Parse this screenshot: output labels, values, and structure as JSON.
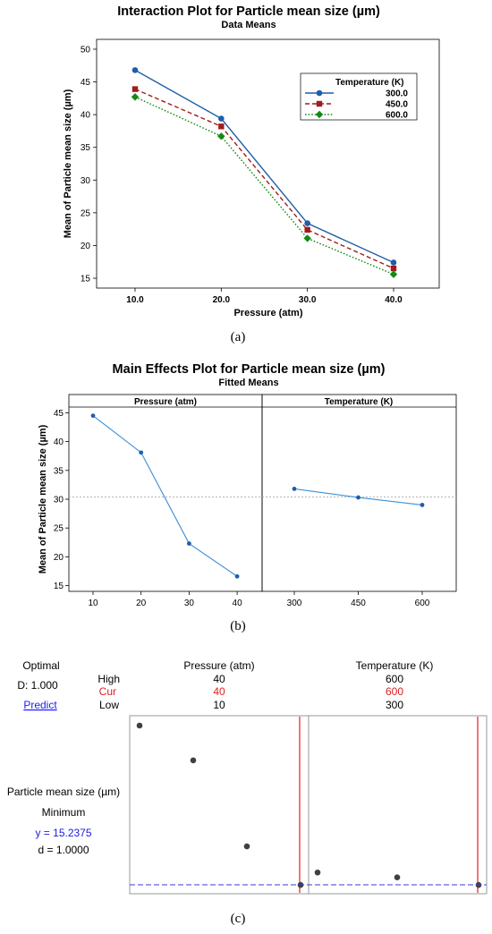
{
  "chart_data": [
    {
      "type": "line",
      "title": "Interaction Plot for Particle mean size (µm)",
      "subtitle": "Data Means",
      "xlabel": "Pressure (atm)",
      "ylabel": "Mean of Particle mean size (µm)",
      "categories": [
        "10.0",
        "20.0",
        "30.0",
        "40.0"
      ],
      "y_ticks": [
        "15",
        "20",
        "25",
        "30",
        "35",
        "40",
        "45",
        "50"
      ],
      "ylim": [
        13.5,
        51.5
      ],
      "legend_title": "Temperature (K)",
      "legend_position": "top-right",
      "series": [
        {
          "name": "300.0",
          "values": [
            46.8,
            39.4,
            23.4,
            17.4
          ],
          "color": "#1f5fa8",
          "marker": "circle",
          "dash": "solid"
        },
        {
          "name": "450.0",
          "values": [
            43.9,
            38.2,
            22.4,
            16.5
          ],
          "color": "#a11c1c",
          "marker": "square",
          "dash": "dashed"
        },
        {
          "name": "600.0",
          "values": [
            42.7,
            36.7,
            21.1,
            15.6
          ],
          "color": "#138a13",
          "marker": "diamond",
          "dash": "dotted"
        }
      ],
      "caption": "(a)"
    },
    {
      "type": "line",
      "title": "Main Effects Plot for Particle mean size (µm)",
      "subtitle": "Fitted Means",
      "ylabel": "Mean of Particle mean size (µm)",
      "y_ticks": [
        "15",
        "20",
        "25",
        "30",
        "35",
        "40",
        "45"
      ],
      "ylim": [
        14,
        46
      ],
      "reference_line": 30.4,
      "color": "#3d8fd6",
      "panels": [
        {
          "label": "Pressure (atm)",
          "x": [
            "10",
            "20",
            "30",
            "40"
          ],
          "values": [
            44.5,
            38.1,
            22.3,
            16.6
          ]
        },
        {
          "label": "Temperature (K)",
          "x": [
            "300",
            "450",
            "600"
          ],
          "values": [
            31.8,
            30.3,
            29.0
          ]
        }
      ],
      "caption": "(b)"
    },
    {
      "type": "scatter",
      "title": "",
      "optimal_label": "Optimal",
      "d_label": "D: 1.000",
      "predict_label": "Predict",
      "row_labels": {
        "high": "High",
        "cur": "Cur",
        "low": "Low"
      },
      "factors": [
        {
          "name": "Pressure (atm)",
          "high": "40",
          "cur": "40",
          "low": "10",
          "values": [
            44.5,
            38.1,
            22.3,
            15.2
          ],
          "optimum_fraction": 1.0
        },
        {
          "name": "Temperature (K)",
          "high": "600",
          "cur": "600",
          "low": "300",
          "values": [
            17.5,
            16.6,
            15.2
          ],
          "optimum_fraction": 1.0
        }
      ],
      "response": {
        "name": "Particle mean size (µm)",
        "goal": "Minimum",
        "y": "y = 15.2375",
        "d": "d = 1.0000",
        "target_value": 15.2375
      },
      "colors": {
        "cur": "#e02020",
        "predict": "#1a1aff",
        "y_text": "#1a1ae0",
        "points": "#404040",
        "target_line": "#3a3ae0",
        "frame": "#999999"
      },
      "caption": "(c)"
    }
  ]
}
